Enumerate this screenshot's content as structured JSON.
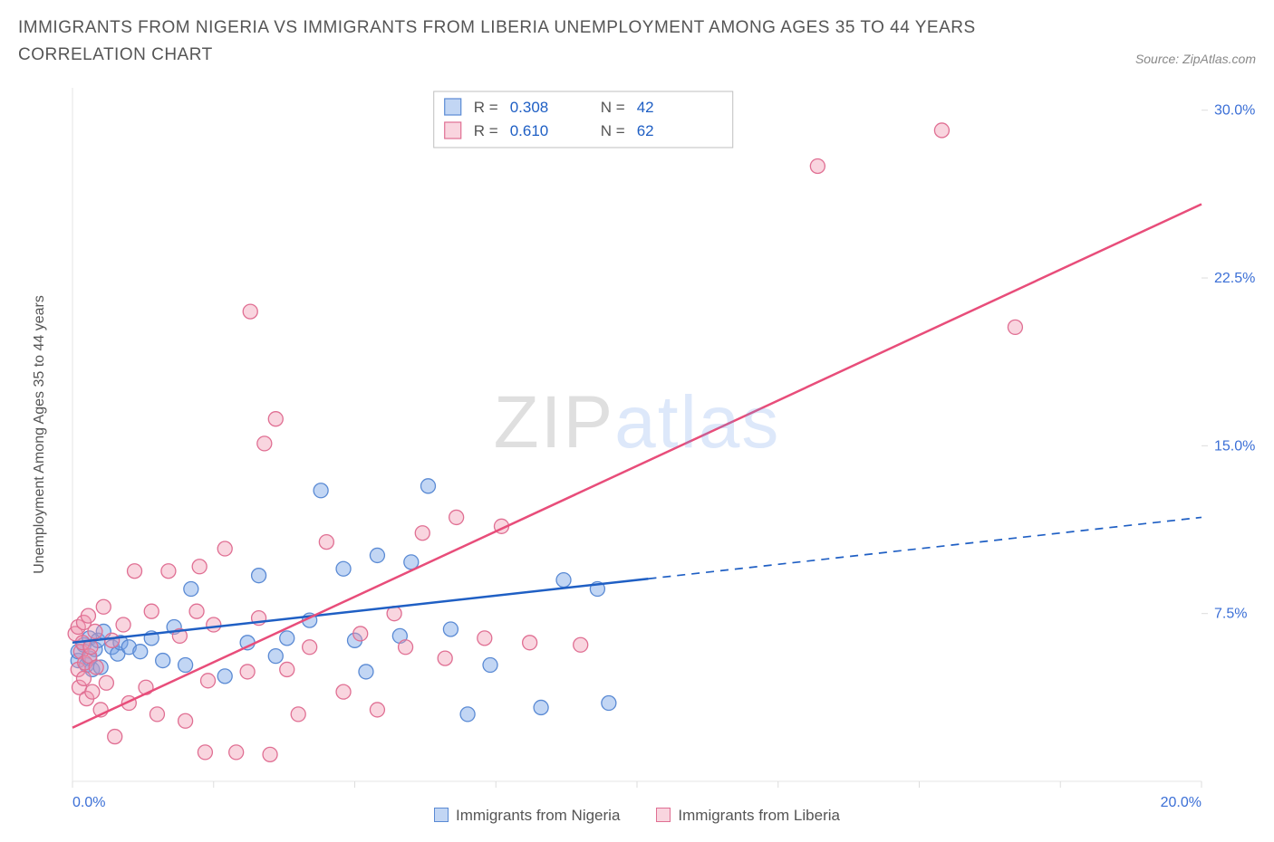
{
  "title": "IMMIGRANTS FROM NIGERIA VS IMMIGRANTS FROM LIBERIA UNEMPLOYMENT AMONG AGES 35 TO 44 YEARS CORRELATION CHART",
  "source_label": "Source: ZipAtlas.com",
  "y_axis_label": "Unemployment Among Ages 35 to 44 years",
  "watermark": {
    "part1": "ZIP",
    "part2": "atlas"
  },
  "chart": {
    "type": "scatter",
    "background_color": "#ffffff",
    "axis_color": "#e5e5e5",
    "tick_color": "#dddddd",
    "x": {
      "min": 0,
      "max": 20,
      "ticks": [
        0,
        2.5,
        5,
        7.5,
        10,
        12.5,
        15,
        17.5,
        20
      ],
      "labels": {
        "0": "0.0%",
        "20": "20.0%"
      },
      "label_color": "#3b6fd6",
      "label_fontsize": 16
    },
    "y": {
      "min": 0,
      "max": 31,
      "ticks": [
        7.5,
        15,
        22.5,
        30
      ],
      "labels": {
        "7.5": "7.5%",
        "15": "15.0%",
        "22.5": "22.5%",
        "30": "30.0%"
      },
      "label_color": "#3b6fd6",
      "label_fontsize": 16
    },
    "series": [
      {
        "name": "Immigrants from Nigeria",
        "color_fill": "rgba(120,165,230,0.45)",
        "color_stroke": "#5a8ad4",
        "marker_radius": 8,
        "trend": {
          "color": "#1f5fc4",
          "width": 2.5,
          "solid_from_x": 0,
          "solid_to_x": 10.2,
          "y_at_xmin": 6.2,
          "y_at_xmax": 11.8,
          "dash_after": true
        },
        "legend_stats": {
          "R": "0.308",
          "N": "42"
        },
        "points": [
          [
            0.1,
            5.4
          ],
          [
            0.1,
            5.8
          ],
          [
            0.2,
            6.1
          ],
          [
            0.25,
            5.2
          ],
          [
            0.3,
            6.4
          ],
          [
            0.3,
            5.5
          ],
          [
            0.35,
            5.0
          ],
          [
            0.4,
            5.9
          ],
          [
            0.45,
            6.3
          ],
          [
            0.5,
            5.1
          ],
          [
            0.55,
            6.7
          ],
          [
            0.7,
            6.0
          ],
          [
            0.8,
            5.7
          ],
          [
            0.85,
            6.2
          ],
          [
            1.0,
            6.0
          ],
          [
            1.2,
            5.8
          ],
          [
            1.4,
            6.4
          ],
          [
            1.6,
            5.4
          ],
          [
            1.8,
            6.9
          ],
          [
            2.0,
            5.2
          ],
          [
            2.1,
            8.6
          ],
          [
            2.7,
            4.7
          ],
          [
            3.1,
            6.2
          ],
          [
            3.3,
            9.2
          ],
          [
            3.6,
            5.6
          ],
          [
            3.8,
            6.4
          ],
          [
            4.2,
            7.2
          ],
          [
            4.4,
            13.0
          ],
          [
            4.8,
            9.5
          ],
          [
            5.0,
            6.3
          ],
          [
            5.2,
            4.9
          ],
          [
            5.4,
            10.1
          ],
          [
            5.8,
            6.5
          ],
          [
            6.0,
            9.8
          ],
          [
            6.3,
            13.2
          ],
          [
            6.7,
            6.8
          ],
          [
            7.0,
            3.0
          ],
          [
            7.4,
            5.2
          ],
          [
            8.3,
            3.3
          ],
          [
            8.7,
            9.0
          ],
          [
            9.3,
            8.6
          ],
          [
            9.5,
            3.5
          ]
        ]
      },
      {
        "name": "Immigrants from Liberia",
        "color_fill": "rgba(240,150,175,0.40)",
        "color_stroke": "#e06f93",
        "marker_radius": 8,
        "trend": {
          "color": "#e84d7a",
          "width": 2.5,
          "solid_from_x": 0,
          "solid_to_x": 20,
          "y_at_xmin": 2.4,
          "y_at_xmax": 25.8,
          "dash_after": false
        },
        "legend_stats": {
          "R": "0.610",
          "N": "62"
        },
        "points": [
          [
            0.05,
            6.6
          ],
          [
            0.1,
            5.0
          ],
          [
            0.1,
            6.9
          ],
          [
            0.12,
            4.2
          ],
          [
            0.15,
            5.8
          ],
          [
            0.18,
            6.2
          ],
          [
            0.2,
            4.6
          ],
          [
            0.2,
            7.1
          ],
          [
            0.22,
            5.3
          ],
          [
            0.25,
            3.7
          ],
          [
            0.28,
            7.4
          ],
          [
            0.3,
            5.6
          ],
          [
            0.32,
            6.0
          ],
          [
            0.35,
            4.0
          ],
          [
            0.4,
            6.7
          ],
          [
            0.42,
            5.1
          ],
          [
            0.5,
            3.2
          ],
          [
            0.55,
            7.8
          ],
          [
            0.6,
            4.4
          ],
          [
            0.7,
            6.3
          ],
          [
            0.75,
            2.0
          ],
          [
            0.9,
            7.0
          ],
          [
            1.0,
            3.5
          ],
          [
            1.1,
            9.4
          ],
          [
            1.3,
            4.2
          ],
          [
            1.4,
            7.6
          ],
          [
            1.5,
            3.0
          ],
          [
            1.7,
            9.4
          ],
          [
            1.9,
            6.5
          ],
          [
            2.0,
            2.7
          ],
          [
            2.2,
            7.6
          ],
          [
            2.25,
            9.6
          ],
          [
            2.35,
            1.3
          ],
          [
            2.4,
            4.5
          ],
          [
            2.5,
            7.0
          ],
          [
            2.7,
            10.4
          ],
          [
            2.9,
            1.3
          ],
          [
            3.1,
            4.9
          ],
          [
            3.15,
            21.0
          ],
          [
            3.3,
            7.3
          ],
          [
            3.4,
            15.1
          ],
          [
            3.5,
            1.2
          ],
          [
            3.6,
            16.2
          ],
          [
            3.8,
            5.0
          ],
          [
            4.0,
            3.0
          ],
          [
            4.2,
            6.0
          ],
          [
            4.5,
            10.7
          ],
          [
            4.8,
            4.0
          ],
          [
            5.1,
            6.6
          ],
          [
            5.4,
            3.2
          ],
          [
            5.7,
            7.5
          ],
          [
            5.9,
            6.0
          ],
          [
            6.2,
            11.1
          ],
          [
            6.6,
            5.5
          ],
          [
            6.8,
            11.8
          ],
          [
            7.3,
            6.4
          ],
          [
            7.6,
            11.4
          ],
          [
            8.1,
            6.2
          ],
          [
            9.0,
            6.1
          ],
          [
            13.2,
            27.5
          ],
          [
            15.4,
            29.1
          ],
          [
            16.7,
            20.3
          ]
        ]
      }
    ],
    "legend_box": {
      "border_color": "#bfbfbf",
      "text_color": "#555555",
      "value_color": "#1f5fc4",
      "fontsize": 17,
      "r_label": "R =",
      "n_label": "N ="
    }
  },
  "bottom_legend": [
    {
      "label": "Immigrants from Nigeria",
      "fill": "rgba(120,165,230,0.45)",
      "stroke": "#5a8ad4"
    },
    {
      "label": "Immigrants from Liberia",
      "fill": "rgba(240,150,175,0.40)",
      "stroke": "#e06f93"
    }
  ]
}
